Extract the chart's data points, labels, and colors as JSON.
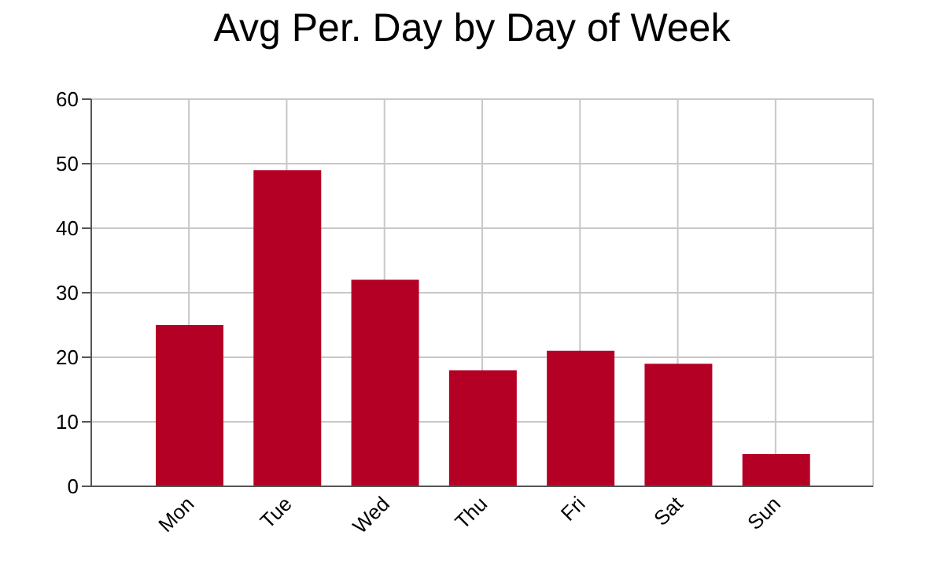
{
  "chart_data": {
    "type": "bar",
    "title": "Avg Per. Day by Day of Week",
    "categories": [
      "Mon",
      "Tue",
      "Wed",
      "Thu",
      "Fri",
      "Sat",
      "Sun"
    ],
    "values": [
      25,
      49,
      32,
      18,
      21,
      19,
      5
    ],
    "color": "#b50026",
    "ylim": [
      0,
      60
    ],
    "yticks": [
      0,
      10,
      20,
      30,
      40,
      50,
      60
    ],
    "grid": true
  }
}
